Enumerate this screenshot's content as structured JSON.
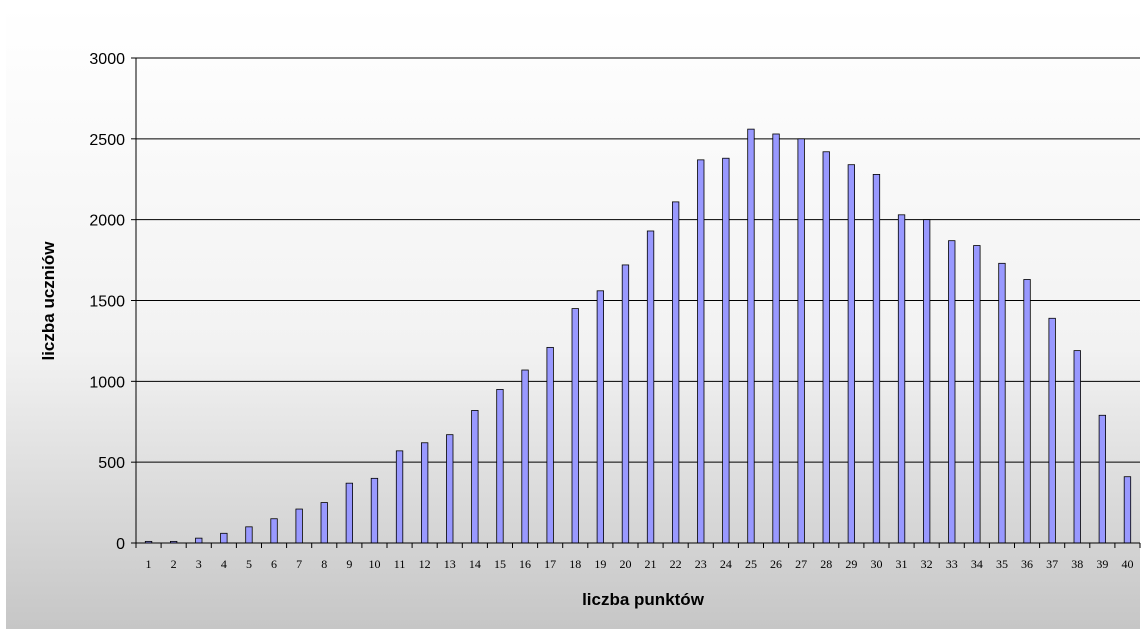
{
  "chart_data": {
    "type": "bar",
    "title": "",
    "xlabel": "liczba punktów",
    "ylabel": "liczba uczniów",
    "ylim": [
      0,
      3000
    ],
    "yticks": [
      0,
      500,
      1000,
      1500,
      2000,
      2500,
      3000
    ],
    "grid": true,
    "legend": "none",
    "bar_color": "#9999ff",
    "categories": [
      "1",
      "2",
      "3",
      "4",
      "5",
      "6",
      "7",
      "8",
      "9",
      "10",
      "11",
      "12",
      "13",
      "14",
      "15",
      "16",
      "17",
      "18",
      "19",
      "20",
      "21",
      "22",
      "23",
      "24",
      "25",
      "26",
      "27",
      "28",
      "29",
      "30",
      "31",
      "32",
      "33",
      "34",
      "35",
      "36",
      "37",
      "38",
      "39",
      "40"
    ],
    "values": [
      10,
      10,
      30,
      60,
      100,
      150,
      210,
      250,
      370,
      400,
      570,
      620,
      670,
      820,
      950,
      1070,
      1210,
      1450,
      1560,
      1720,
      1930,
      2110,
      2370,
      2380,
      2560,
      2530,
      2500,
      2420,
      2340,
      2280,
      2030,
      2000,
      1870,
      1840,
      1730,
      1630,
      1390,
      1190,
      790,
      410
    ]
  }
}
